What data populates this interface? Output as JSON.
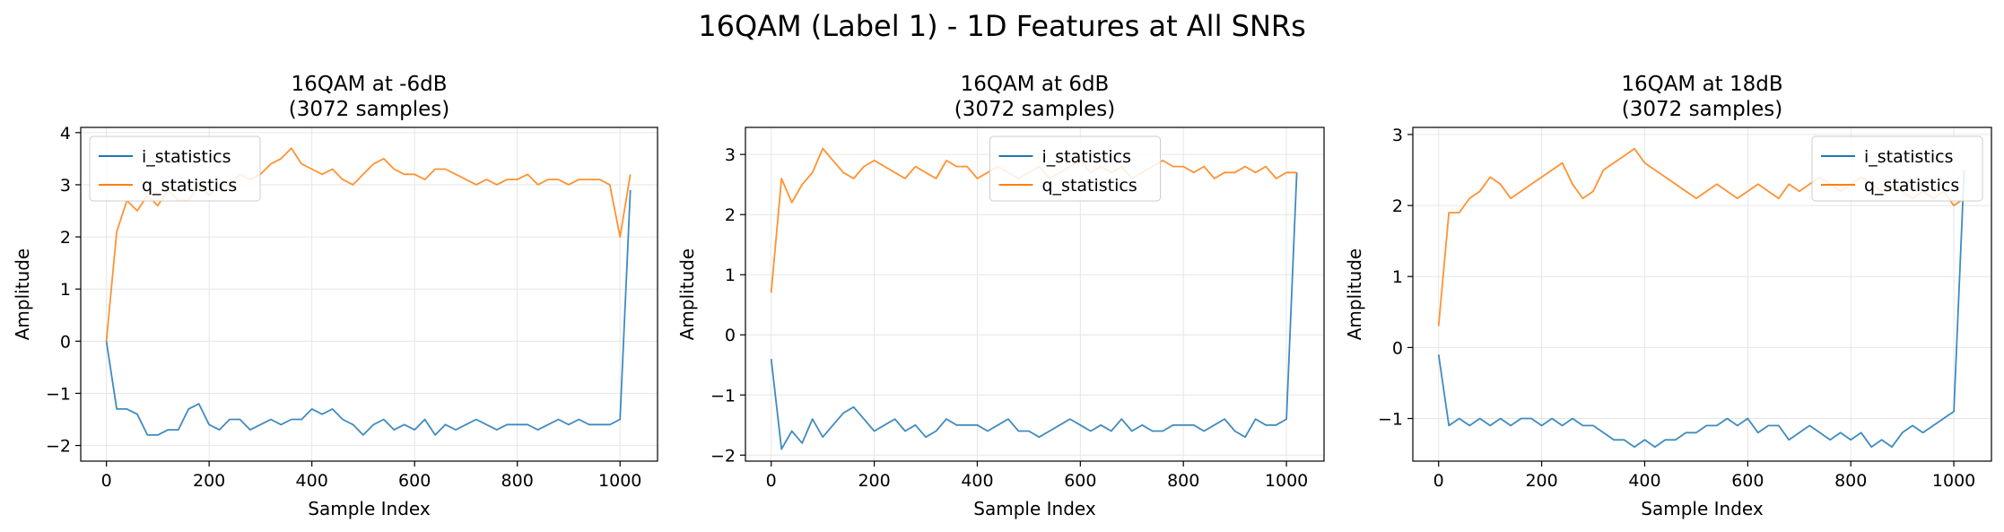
{
  "figure": {
    "title": "16QAM (Label 1) - 1D Features at All SNRs"
  },
  "chart_data": [
    {
      "type": "line",
      "title_line1": "16QAM at -6dB",
      "title_line2": "(3072 samples)",
      "xlabel": "Sample Index",
      "ylabel": "Amplitude",
      "xlim": [
        -50,
        1073
      ],
      "ylim": [
        -2.3,
        4.1
      ],
      "xticks": [
        0,
        200,
        400,
        600,
        800,
        1000
      ],
      "yticks": [
        -2,
        -1,
        0,
        1,
        2,
        3,
        4
      ],
      "ytick_labels": [
        "−2",
        "−1",
        "0",
        "1",
        "2",
        "3",
        "4"
      ],
      "grid": true,
      "legend_position": "upper-left",
      "series": [
        {
          "name": "i_statistics",
          "color": "#1f77b4",
          "x": [
            0,
            20,
            40,
            60,
            80,
            100,
            120,
            140,
            160,
            180,
            200,
            220,
            240,
            260,
            280,
            300,
            320,
            340,
            360,
            380,
            400,
            420,
            440,
            460,
            480,
            500,
            520,
            540,
            560,
            580,
            600,
            620,
            640,
            660,
            680,
            700,
            720,
            740,
            760,
            780,
            800,
            820,
            840,
            860,
            880,
            900,
            920,
            940,
            960,
            980,
            1000,
            1020
          ],
          "y": [
            0.0,
            -1.3,
            -1.3,
            -1.4,
            -1.8,
            -1.8,
            -1.7,
            -1.7,
            -1.3,
            -1.2,
            -1.6,
            -1.7,
            -1.5,
            -1.5,
            -1.7,
            -1.6,
            -1.5,
            -1.6,
            -1.5,
            -1.5,
            -1.3,
            -1.4,
            -1.3,
            -1.5,
            -1.6,
            -1.8,
            -1.6,
            -1.5,
            -1.7,
            -1.6,
            -1.7,
            -1.5,
            -1.8,
            -1.6,
            -1.7,
            -1.6,
            -1.5,
            -1.6,
            -1.7,
            -1.6,
            -1.6,
            -1.6,
            -1.7,
            -1.6,
            -1.5,
            -1.6,
            -1.5,
            -1.6,
            -1.6,
            -1.6,
            -1.5,
            2.9
          ]
        },
        {
          "name": "q_statistics",
          "color": "#ff7f0e",
          "x": [
            0,
            20,
            40,
            60,
            80,
            100,
            120,
            140,
            160,
            180,
            200,
            220,
            240,
            260,
            280,
            300,
            320,
            340,
            360,
            380,
            400,
            420,
            440,
            460,
            480,
            500,
            520,
            540,
            560,
            580,
            600,
            620,
            640,
            660,
            680,
            700,
            720,
            740,
            760,
            780,
            800,
            820,
            840,
            860,
            880,
            900,
            920,
            940,
            960,
            980,
            1000,
            1020
          ],
          "y": [
            0.0,
            2.1,
            2.7,
            2.5,
            2.8,
            2.6,
            2.9,
            2.7,
            2.7,
            3.0,
            2.8,
            3.0,
            3.0,
            3.2,
            3.1,
            3.2,
            3.4,
            3.5,
            3.7,
            3.4,
            3.3,
            3.2,
            3.3,
            3.1,
            3.0,
            3.2,
            3.4,
            3.5,
            3.3,
            3.2,
            3.2,
            3.1,
            3.3,
            3.3,
            3.2,
            3.1,
            3.0,
            3.1,
            3.0,
            3.1,
            3.1,
            3.2,
            3.0,
            3.1,
            3.1,
            3.0,
            3.1,
            3.1,
            3.1,
            3.0,
            2.0,
            3.2
          ]
        }
      ]
    },
    {
      "type": "line",
      "title_line1": "16QAM at 6dB",
      "title_line2": "(3072 samples)",
      "xlabel": "Sample Index",
      "ylabel": "Amplitude",
      "xlim": [
        -50,
        1073
      ],
      "ylim": [
        -2.1,
        3.45
      ],
      "xticks": [
        0,
        200,
        400,
        600,
        800,
        1000
      ],
      "yticks": [
        -2,
        -1,
        0,
        1,
        2,
        3
      ],
      "ytick_labels": [
        "−2",
        "−1",
        "0",
        "1",
        "2",
        "3"
      ],
      "grid": true,
      "legend_position": "upper-center",
      "series": [
        {
          "name": "i_statistics",
          "color": "#1f77b4",
          "x": [
            0,
            20,
            40,
            60,
            80,
            100,
            120,
            140,
            160,
            180,
            200,
            220,
            240,
            260,
            280,
            300,
            320,
            340,
            360,
            380,
            400,
            420,
            440,
            460,
            480,
            500,
            520,
            540,
            560,
            580,
            600,
            620,
            640,
            660,
            680,
            700,
            720,
            740,
            760,
            780,
            800,
            820,
            840,
            860,
            880,
            900,
            920,
            940,
            960,
            980,
            1000,
            1020
          ],
          "y": [
            -0.4,
            -1.9,
            -1.6,
            -1.8,
            -1.4,
            -1.7,
            -1.5,
            -1.3,
            -1.2,
            -1.4,
            -1.6,
            -1.5,
            -1.4,
            -1.6,
            -1.5,
            -1.7,
            -1.6,
            -1.4,
            -1.5,
            -1.5,
            -1.5,
            -1.6,
            -1.5,
            -1.4,
            -1.6,
            -1.6,
            -1.7,
            -1.6,
            -1.5,
            -1.4,
            -1.5,
            -1.6,
            -1.5,
            -1.6,
            -1.4,
            -1.6,
            -1.5,
            -1.6,
            -1.6,
            -1.5,
            -1.5,
            -1.5,
            -1.6,
            -1.5,
            -1.4,
            -1.6,
            -1.7,
            -1.4,
            -1.5,
            -1.5,
            -1.4,
            2.7
          ]
        },
        {
          "name": "q_statistics",
          "color": "#ff7f0e",
          "x": [
            0,
            20,
            40,
            60,
            80,
            100,
            120,
            140,
            160,
            180,
            200,
            220,
            240,
            260,
            280,
            300,
            320,
            340,
            360,
            380,
            400,
            420,
            440,
            460,
            480,
            500,
            520,
            540,
            560,
            580,
            600,
            620,
            640,
            660,
            680,
            700,
            720,
            740,
            760,
            780,
            800,
            820,
            840,
            860,
            880,
            900,
            920,
            940,
            960,
            980,
            1000,
            1020
          ],
          "y": [
            0.7,
            2.6,
            2.2,
            2.5,
            2.7,
            3.1,
            2.9,
            2.7,
            2.6,
            2.8,
            2.9,
            2.8,
            2.7,
            2.6,
            2.8,
            2.7,
            2.6,
            2.9,
            2.8,
            2.8,
            2.6,
            2.7,
            2.8,
            2.7,
            2.6,
            2.7,
            2.8,
            2.6,
            2.7,
            2.8,
            2.9,
            2.7,
            2.8,
            2.7,
            2.8,
            2.6,
            2.7,
            2.8,
            2.9,
            2.8,
            2.8,
            2.7,
            2.8,
            2.6,
            2.7,
            2.7,
            2.8,
            2.7,
            2.8,
            2.6,
            2.7,
            2.7
          ]
        }
      ]
    },
    {
      "type": "line",
      "title_line1": "16QAM at 18dB",
      "title_line2": "(3072 samples)",
      "xlabel": "Sample Index",
      "ylabel": "Amplitude",
      "xlim": [
        -50,
        1073
      ],
      "ylim": [
        -1.6,
        3.1
      ],
      "xticks": [
        0,
        200,
        400,
        600,
        800,
        1000
      ],
      "yticks": [
        -1,
        0,
        1,
        2,
        3
      ],
      "ytick_labels": [
        "−1",
        "0",
        "1",
        "2",
        "3"
      ],
      "grid": true,
      "legend_position": "upper-right",
      "series": [
        {
          "name": "i_statistics",
          "color": "#1f77b4",
          "x": [
            0,
            20,
            40,
            60,
            80,
            100,
            120,
            140,
            160,
            180,
            200,
            220,
            240,
            260,
            280,
            300,
            320,
            340,
            360,
            380,
            400,
            420,
            440,
            460,
            480,
            500,
            520,
            540,
            560,
            580,
            600,
            620,
            640,
            660,
            680,
            700,
            720,
            740,
            760,
            780,
            800,
            820,
            840,
            860,
            880,
            900,
            920,
            940,
            960,
            980,
            1000,
            1020
          ],
          "y": [
            -0.1,
            -1.1,
            -1.0,
            -1.1,
            -1.0,
            -1.1,
            -1.0,
            -1.1,
            -1.0,
            -1.0,
            -1.1,
            -1.0,
            -1.1,
            -1.0,
            -1.1,
            -1.1,
            -1.2,
            -1.3,
            -1.3,
            -1.4,
            -1.3,
            -1.4,
            -1.3,
            -1.3,
            -1.2,
            -1.2,
            -1.1,
            -1.1,
            -1.0,
            -1.1,
            -1.0,
            -1.2,
            -1.1,
            -1.1,
            -1.3,
            -1.2,
            -1.1,
            -1.2,
            -1.3,
            -1.2,
            -1.3,
            -1.2,
            -1.4,
            -1.3,
            -1.4,
            -1.2,
            -1.1,
            -1.2,
            -1.1,
            -1.0,
            -0.9,
            2.5
          ]
        },
        {
          "name": "q_statistics",
          "color": "#ff7f0e",
          "x": [
            0,
            20,
            40,
            60,
            80,
            100,
            120,
            140,
            160,
            180,
            200,
            220,
            240,
            260,
            280,
            300,
            320,
            340,
            360,
            380,
            400,
            420,
            440,
            460,
            480,
            500,
            520,
            540,
            560,
            580,
            600,
            620,
            640,
            660,
            680,
            700,
            720,
            740,
            760,
            780,
            800,
            820,
            840,
            860,
            880,
            900,
            920,
            940,
            960,
            980,
            1000,
            1020
          ],
          "y": [
            0.3,
            1.9,
            1.9,
            2.1,
            2.2,
            2.4,
            2.3,
            2.1,
            2.2,
            2.3,
            2.4,
            2.5,
            2.6,
            2.3,
            2.1,
            2.2,
            2.5,
            2.6,
            2.7,
            2.8,
            2.6,
            2.5,
            2.4,
            2.3,
            2.2,
            2.1,
            2.2,
            2.3,
            2.2,
            2.1,
            2.2,
            2.3,
            2.2,
            2.1,
            2.3,
            2.2,
            2.3,
            2.4,
            2.3,
            2.2,
            2.3,
            2.4,
            2.3,
            2.2,
            2.3,
            2.2,
            2.1,
            2.2,
            2.1,
            2.2,
            2.0,
            2.1
          ]
        }
      ]
    }
  ]
}
